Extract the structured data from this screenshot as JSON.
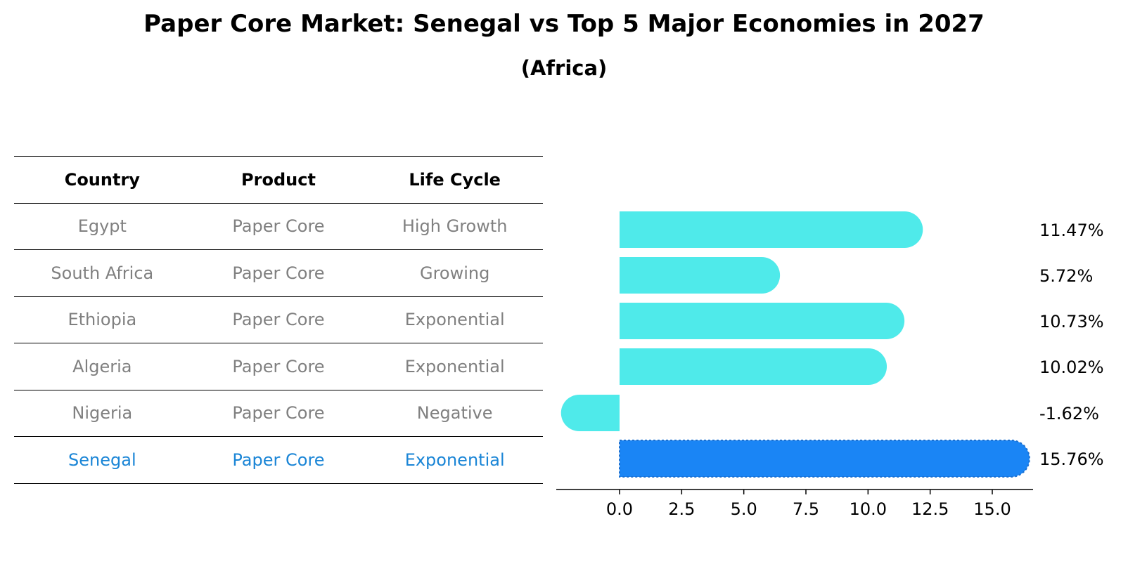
{
  "title": "Paper Core Market: Senegal vs Top 5 Major Economies in 2027",
  "subtitle": "(Africa)",
  "table": {
    "headers": [
      "Country",
      "Product",
      "Life Cycle"
    ],
    "rows": [
      [
        "Egypt",
        "Paper Core",
        "High Growth"
      ],
      [
        "South Africa",
        "Paper Core",
        "Growing"
      ],
      [
        "Ethiopia",
        "Paper Core",
        "Exponential"
      ],
      [
        "Algeria",
        "Paper Core",
        "Exponential"
      ],
      [
        "Nigeria",
        "Paper Core",
        "Negative"
      ],
      [
        "Senegal",
        "Paper Core",
        "Exponential"
      ]
    ],
    "highlight_row": 5
  },
  "chart_data": {
    "type": "bar",
    "orientation": "horizontal",
    "categories": [
      "Egypt",
      "South Africa",
      "Ethiopia",
      "Algeria",
      "Nigeria",
      "Senegal"
    ],
    "values": [
      11.47,
      5.72,
      10.73,
      10.02,
      -1.62,
      15.76
    ],
    "value_labels": [
      "11.47%",
      "5.72%",
      "10.73%",
      "10.02%",
      "-1.62%",
      "15.76%"
    ],
    "xticks": [
      "0.0",
      "2.5",
      "5.0",
      "7.5",
      "10.0",
      "12.5",
      "15.0"
    ],
    "xtick_values": [
      0,
      2.5,
      5,
      7.5,
      10,
      12.5,
      15
    ],
    "xlim": [
      -2.5,
      16.5
    ],
    "grid": false,
    "colors": {
      "default": "#4feaea",
      "highlight": "#1a85f5",
      "highlight_text": "#1a85d6",
      "muted_text": "#808080"
    },
    "highlight_index": 5
  }
}
